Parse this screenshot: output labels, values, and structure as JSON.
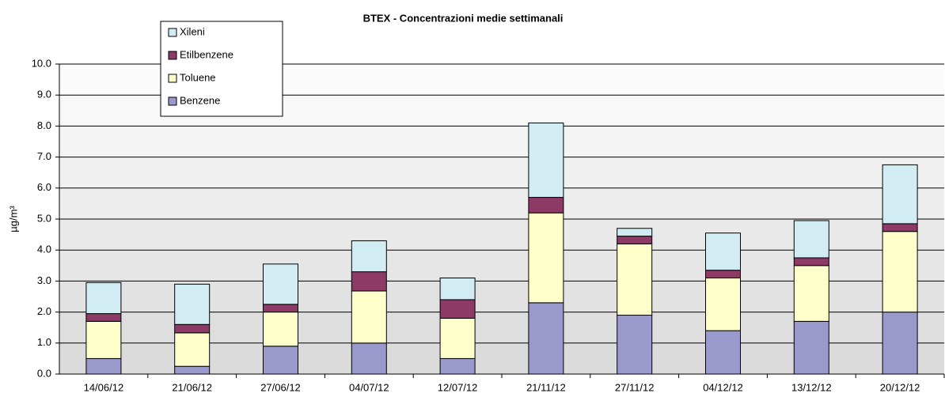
{
  "chart_data": {
    "type": "stacked_bar",
    "title": "BTEX - Concentrazioni medie settimanali",
    "y_label": "µg/m³",
    "categories": [
      "14/06/12",
      "21/06/12",
      "27/06/12",
      "04/07/12",
      "12/07/12",
      "21/11/12",
      "27/11/12",
      "04/12/12",
      "13/12/12",
      "20/12/12"
    ],
    "series": [
      {
        "name": "Benzene",
        "color": "#9999cc",
        "values": [
          0.5,
          0.25,
          0.9,
          1.0,
          0.5,
          2.3,
          1.9,
          1.4,
          1.7,
          2.0
        ]
      },
      {
        "name": "Toluene",
        "color": "#ffffcc",
        "values": [
          1.2,
          1.08,
          1.1,
          1.68,
          1.3,
          2.9,
          2.3,
          1.7,
          1.8,
          2.6
        ]
      },
      {
        "name": "Etilbenzene",
        "color": "#8e3a66",
        "values": [
          0.25,
          0.27,
          0.25,
          0.62,
          0.6,
          0.5,
          0.25,
          0.25,
          0.25,
          0.25
        ]
      },
      {
        "name": "Xileni",
        "color": "#d2ecf4",
        "values": [
          1.0,
          1.3,
          1.3,
          1.0,
          0.7,
          2.4,
          0.25,
          1.2,
          1.2,
          1.9
        ]
      }
    ],
    "ylim": [
      0,
      10
    ],
    "yticks": [
      {
        "value": 0,
        "label": "0.0"
      },
      {
        "value": 1,
        "label": "1.0"
      },
      {
        "value": 2,
        "label": "2.0"
      },
      {
        "value": 3,
        "label": "3.0"
      },
      {
        "value": 4,
        "label": "4.0"
      },
      {
        "value": 5,
        "label": "5.0"
      },
      {
        "value": 6,
        "label": "6.0"
      },
      {
        "value": 7,
        "label": "7.0"
      },
      {
        "value": 8,
        "label": "8.0"
      },
      {
        "value": 9,
        "label": "9.0"
      },
      {
        "value": 10,
        "label": "10.0"
      }
    ],
    "grid": true,
    "legend": "top-left"
  }
}
